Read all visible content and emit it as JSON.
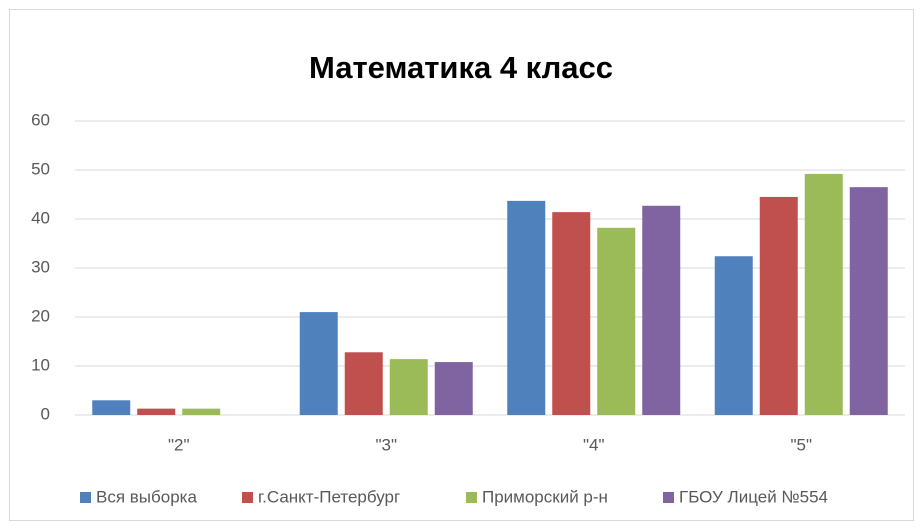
{
  "chart_data": {
    "type": "bar",
    "title": "Математика 4 класс",
    "categories": [
      "\"2\"",
      "\"3\"",
      "\"4\"",
      "\"5\""
    ],
    "series": [
      {
        "name": "Вся выборка",
        "color": "#4f81bd",
        "values": [
          3.0,
          21.0,
          43.7,
          32.4
        ]
      },
      {
        "name": "г.Санкт-Петербург",
        "color": "#c0504d",
        "values": [
          1.3,
          12.8,
          41.4,
          44.5
        ]
      },
      {
        "name": "Приморский р-н",
        "color": "#9bbb59",
        "values": [
          1.3,
          11.4,
          38.2,
          49.2
        ]
      },
      {
        "name": "ГБОУ Лицей №554",
        "color": "#8064a2",
        "values": [
          0,
          10.8,
          42.7,
          46.5
        ]
      }
    ],
    "ylim": [
      0,
      60
    ],
    "yticks": [
      0,
      10,
      20,
      30,
      40,
      50,
      60
    ],
    "grid": true,
    "legend": "bottom"
  }
}
